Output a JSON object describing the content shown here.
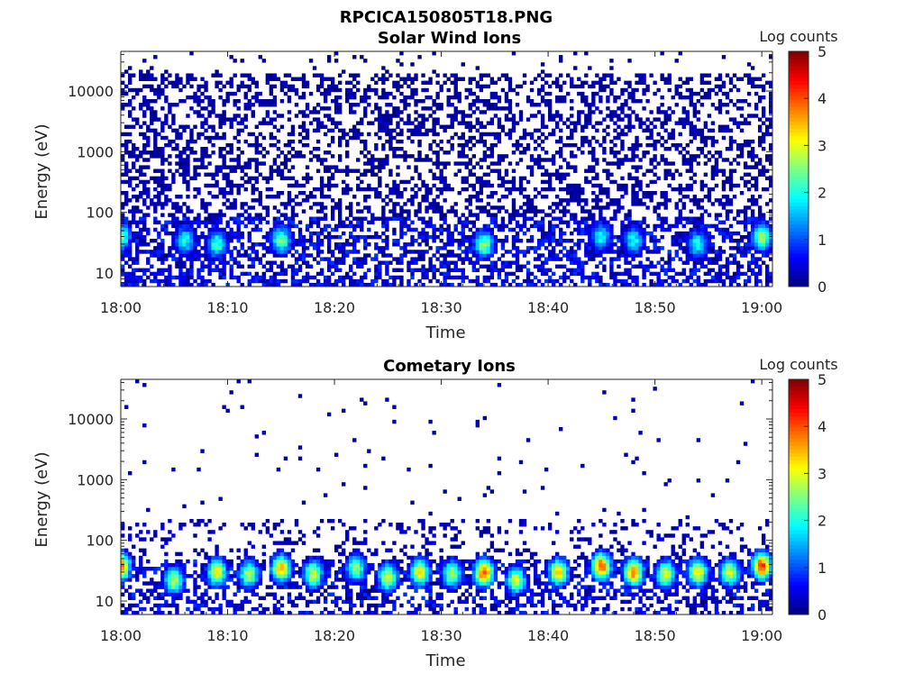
{
  "figure": {
    "filename": "RPCICA150805T18.PNG"
  },
  "colormap": "jet",
  "chart_data": [
    {
      "type": "heatmap",
      "title": "Solar Wind Ions",
      "xlabel": "Time",
      "ylabel": "Energy (eV)",
      "x_scale": "time",
      "y_scale": "log",
      "xlim": [
        "18:00",
        "19:01"
      ],
      "ylim": [
        6,
        45000
      ],
      "xticks": [
        "18:00",
        "18:10",
        "18:20",
        "18:30",
        "18:40",
        "18:50",
        "19:00"
      ],
      "yticks": [
        "10",
        "100",
        "1000",
        "10000"
      ],
      "colorbar": {
        "label": "Log counts",
        "range": [
          0,
          5
        ],
        "ticks": [
          "0",
          "1",
          "2",
          "3",
          "4",
          "5"
        ]
      },
      "hotspots": [
        {
          "time": "18:00",
          "energy": 40,
          "level": 2.5
        },
        {
          "time": "18:06",
          "energy": 35,
          "level": 2.0
        },
        {
          "time": "18:09",
          "energy": 30,
          "level": 2.2
        },
        {
          "time": "18:15",
          "energy": 35,
          "level": 2.5
        },
        {
          "time": "18:34",
          "energy": 30,
          "level": 2.6
        },
        {
          "time": "18:45",
          "energy": 40,
          "level": 2.0
        },
        {
          "time": "18:48",
          "energy": 35,
          "level": 2.0
        },
        {
          "time": "18:54",
          "energy": 30,
          "level": 2.0
        },
        {
          "time": "19:00",
          "energy": 40,
          "level": 2.8
        }
      ]
    },
    {
      "type": "heatmap",
      "title": "Cometary Ions",
      "xlabel": "Time",
      "ylabel": "Energy (eV)",
      "x_scale": "time",
      "y_scale": "log",
      "xlim": [
        "18:00",
        "19:01"
      ],
      "ylim": [
        6,
        45000
      ],
      "xticks": [
        "18:00",
        "18:10",
        "18:20",
        "18:30",
        "18:40",
        "18:50",
        "19:00"
      ],
      "yticks": [
        "10",
        "100",
        "1000",
        "10000"
      ],
      "colorbar": {
        "label": "Log counts",
        "range": [
          0,
          5
        ],
        "ticks": [
          "0",
          "1",
          "2",
          "3",
          "4",
          "5"
        ]
      },
      "hotspots": [
        {
          "time": "18:00",
          "energy": 38,
          "level": 4.0
        },
        {
          "time": "18:05",
          "energy": 22,
          "level": 2.8
        },
        {
          "time": "18:09",
          "energy": 30,
          "level": 3.2
        },
        {
          "time": "18:12",
          "energy": 28,
          "level": 2.8
        },
        {
          "time": "18:15",
          "energy": 35,
          "level": 3.6
        },
        {
          "time": "18:18",
          "energy": 28,
          "level": 3.0
        },
        {
          "time": "18:22",
          "energy": 35,
          "level": 2.6
        },
        {
          "time": "18:25",
          "energy": 25,
          "level": 3.0
        },
        {
          "time": "18:28",
          "energy": 30,
          "level": 3.2
        },
        {
          "time": "18:31",
          "energy": 28,
          "level": 2.8
        },
        {
          "time": "18:34",
          "energy": 30,
          "level": 4.1
        },
        {
          "time": "18:37",
          "energy": 22,
          "level": 3.0
        },
        {
          "time": "18:41",
          "energy": 30,
          "level": 3.4
        },
        {
          "time": "18:45",
          "energy": 38,
          "level": 4.0
        },
        {
          "time": "18:48",
          "energy": 30,
          "level": 3.8
        },
        {
          "time": "18:51",
          "energy": 28,
          "level": 3.0
        },
        {
          "time": "18:54",
          "energy": 30,
          "level": 3.3
        },
        {
          "time": "18:57",
          "energy": 30,
          "level": 3.0
        },
        {
          "time": "19:00",
          "energy": 38,
          "level": 4.2
        }
      ]
    }
  ]
}
